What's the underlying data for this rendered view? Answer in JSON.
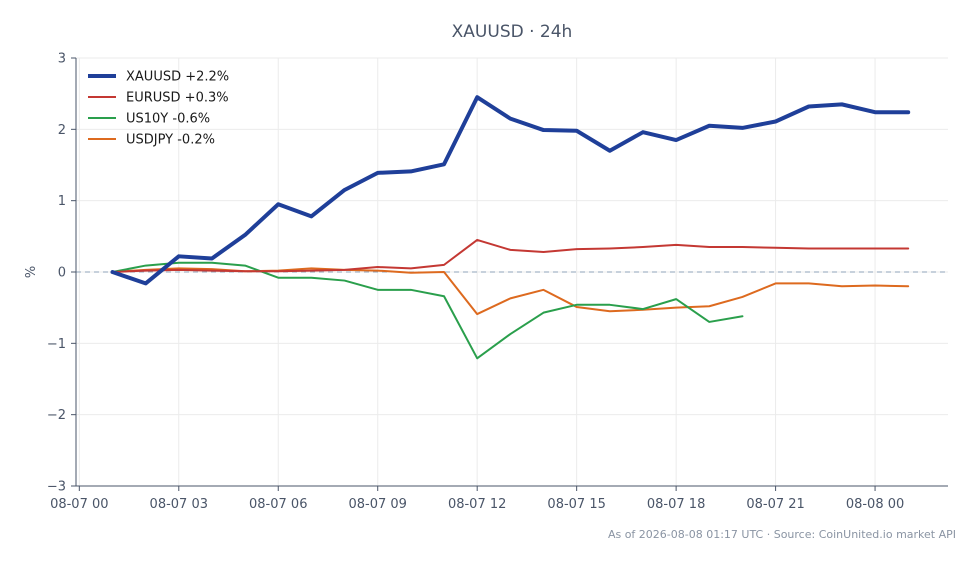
{
  "chart_data": {
    "type": "line",
    "title": "XAUUSD · 24h",
    "ylabel": "%",
    "xlabel": "",
    "footer": "As of 2026-08-08 01:17 UTC · Source: CoinUnited.io market API",
    "ylim": [
      -3,
      3
    ],
    "yticks": [
      -3,
      -2,
      -1,
      0,
      1,
      2,
      3
    ],
    "ytick_labels": [
      "−3",
      "−2",
      "−1",
      "0",
      "1",
      "2",
      "3"
    ],
    "x_hours": [
      1,
      2,
      3,
      4,
      5,
      6,
      7,
      8,
      9,
      10,
      11,
      12,
      13,
      14,
      15,
      16,
      17,
      18,
      19,
      20,
      21,
      22,
      23,
      24,
      25
    ],
    "xlim_hours": [
      -0.1,
      26.2
    ],
    "xticks_hours": [
      0,
      3,
      6,
      9,
      12,
      15,
      18,
      21,
      24
    ],
    "xtick_labels": [
      "08-07 00",
      "08-07 03",
      "08-07 06",
      "08-07 09",
      "08-07 12",
      "08-07 15",
      "08-07 18",
      "08-07 21",
      "08-08 00"
    ],
    "grid": true,
    "zero_line": true,
    "legend_position": "top-left",
    "series": [
      {
        "name": "XAUUSD +2.2%",
        "color": "#1f3f99",
        "width": 4,
        "values": [
          0.0,
          -0.16,
          0.22,
          0.19,
          0.52,
          0.95,
          0.78,
          1.15,
          1.39,
          1.41,
          1.51,
          2.45,
          2.15,
          1.99,
          1.98,
          1.7,
          1.96,
          1.85,
          2.05,
          2.02,
          2.11,
          2.32,
          2.35,
          2.24,
          2.24
        ]
      },
      {
        "name": "EURUSD +0.3%",
        "color": "#c43833",
        "width": 2,
        "values": [
          0.0,
          0.02,
          0.03,
          0.02,
          0.01,
          0.01,
          0.02,
          0.03,
          0.07,
          0.05,
          0.1,
          0.45,
          0.31,
          0.28,
          0.32,
          0.33,
          0.35,
          0.38,
          0.35,
          0.35,
          0.34,
          0.33,
          0.33,
          0.33,
          0.33
        ]
      },
      {
        "name": "US10Y -0.6%",
        "color": "#2a9f4c",
        "width": 2,
        "values": [
          0.0,
          0.09,
          0.13,
          0.13,
          0.09,
          -0.08,
          -0.08,
          -0.12,
          -0.25,
          -0.25,
          -0.34,
          -1.21,
          -0.87,
          -0.57,
          -0.46,
          -0.46,
          -0.52,
          -0.38,
          -0.7,
          -0.62,
          null,
          null,
          null,
          null,
          null
        ]
      },
      {
        "name": "USDJPY -0.2%",
        "color": "#dd6a1f",
        "width": 2,
        "values": [
          0.0,
          0.03,
          0.05,
          0.04,
          0.01,
          0.02,
          0.05,
          0.03,
          0.02,
          -0.01,
          0.0,
          -0.59,
          -0.37,
          -0.25,
          -0.49,
          -0.55,
          -0.53,
          -0.5,
          -0.48,
          -0.35,
          -0.16,
          -0.16,
          -0.2,
          -0.19,
          -0.2
        ]
      }
    ]
  }
}
